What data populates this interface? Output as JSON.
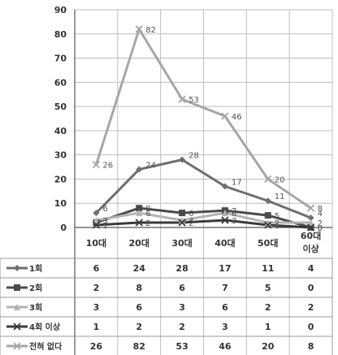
{
  "chart_data": {
    "type": "line",
    "categories": [
      "10대",
      "20대",
      "30대",
      "40대",
      "50대",
      "60대 이상"
    ],
    "ylim": [
      0,
      90
    ],
    "yticks": [
      0,
      10,
      20,
      30,
      40,
      50,
      60,
      70,
      80,
      90
    ],
    "grid": true,
    "legend": "data table below chart",
    "series": [
      {
        "name": "1회",
        "values": [
          6,
          24,
          28,
          17,
          11,
          4
        ],
        "color": "#6f6f6f",
        "marker": "diamond"
      },
      {
        "name": "2회",
        "values": [
          2,
          8,
          6,
          7,
          5,
          0
        ],
        "color": "#4a4a4a",
        "marker": "square"
      },
      {
        "name": "3회",
        "values": [
          3,
          6,
          3,
          6,
          2,
          2
        ],
        "color": "#b3b3b3",
        "marker": "triangle"
      },
      {
        "name": "4회 이상",
        "values": [
          1,
          2,
          2,
          3,
          1,
          0
        ],
        "color": "#3a3a3a",
        "marker": "x"
      },
      {
        "name": "전혀 없다",
        "values": [
          26,
          82,
          53,
          46,
          20,
          8
        ],
        "color": "#a6a6a6",
        "marker": "x"
      }
    ]
  }
}
